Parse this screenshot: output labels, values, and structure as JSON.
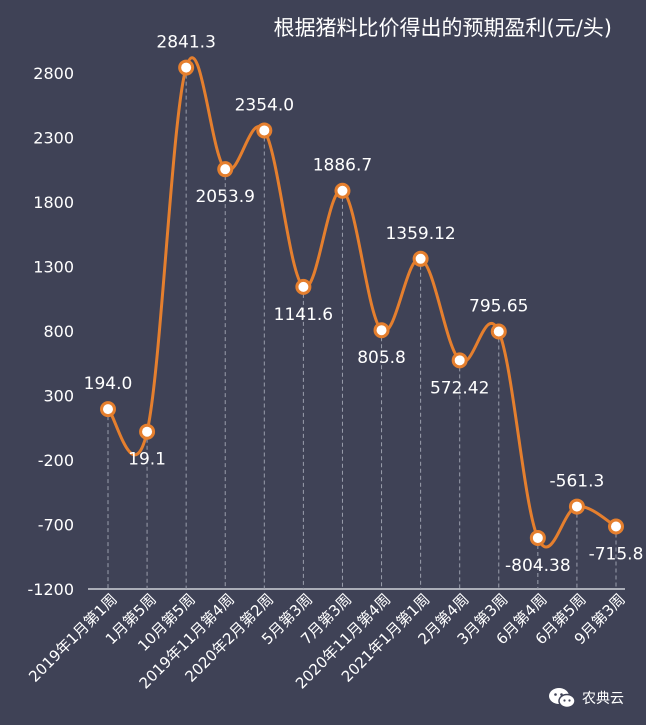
{
  "chart_data": {
    "type": "line",
    "title": "根据猪料比价得出的预期盈利(元/头)",
    "categories": [
      "2019年1月第1周",
      "1月第5周",
      "10月第5周",
      "2019年11月第4周",
      "2020年2月第2周",
      "5月第3周",
      "7月第3周",
      "2020年11月第4周",
      "2021年1月第1周",
      "2月第4周",
      "3月第3周",
      "6月第4周",
      "6月第5周",
      "9月第3周"
    ],
    "values": [
      194.0,
      19.1,
      2841.3,
      2053.9,
      2354.0,
      1141.6,
      1886.7,
      805.8,
      1359.12,
      572.42,
      795.65,
      -804.38,
      -561.3,
      -715.8
    ],
    "data_labels": [
      "194.0",
      "19.1",
      "2841.3",
      "2053.9",
      "2354.0",
      "1141.6",
      "1886.7",
      "805.8",
      "1359.12",
      "572.42",
      "795.65",
      "-804.38",
      "-561.3",
      "-715.8"
    ],
    "label_placement": [
      "above",
      "below",
      "above",
      "below",
      "above",
      "below",
      "above",
      "below",
      "above",
      "below",
      "above",
      "below",
      "above",
      "below"
    ],
    "y_ticks": [
      -1200,
      -700,
      -200,
      300,
      800,
      1300,
      1800,
      2300,
      2800
    ],
    "ylim": [
      -1200,
      2900
    ],
    "xlabel": "",
    "ylabel": "",
    "colors": {
      "background": "#3f4256",
      "line": "#e57f2e",
      "text": "#ffffff",
      "drop_line": "#9a9eac"
    }
  },
  "watermark": {
    "text": "农典云"
  }
}
